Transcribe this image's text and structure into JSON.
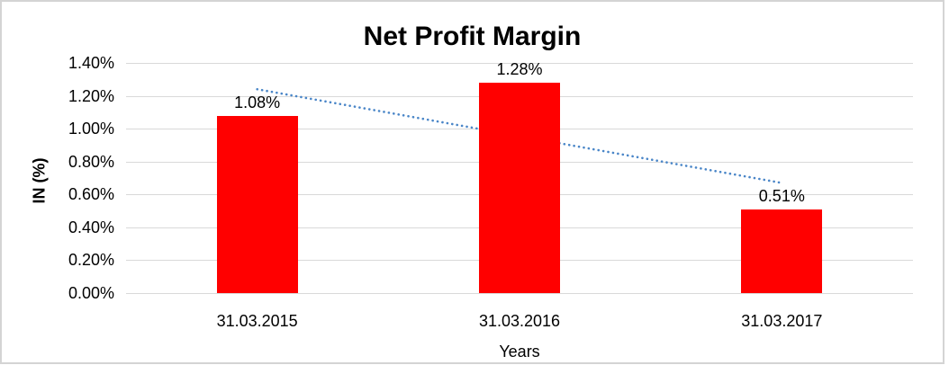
{
  "chart_data": {
    "type": "bar",
    "title": "Net Profit Margin",
    "xlabel": "Years",
    "ylabel": "IN (%)",
    "categories": [
      "31.03.2015",
      "31.03.2016",
      "31.03.2017"
    ],
    "values": [
      1.08,
      1.28,
      0.51
    ],
    "value_labels": [
      "1.08%",
      "1.28%",
      "0.51%"
    ],
    "unit": "%",
    "ylim": [
      0,
      1.4
    ],
    "ytick_step": 0.2,
    "ytick_labels": [
      "0.00%",
      "0.20%",
      "0.40%",
      "0.60%",
      "0.80%",
      "1.00%",
      "1.20%",
      "1.40%"
    ],
    "grid": true,
    "legend": false,
    "bar_color": "#ff0000",
    "gridline_color": "#d9d9d9",
    "frame_border_color": "#d4d4d4",
    "text_color": "#000000",
    "trendline": {
      "type": "linear",
      "style": "dotted",
      "color": "#4a86c8",
      "start_value": 1.24,
      "end_value": 0.67,
      "start_category_index": 0,
      "end_category_index": 2
    }
  }
}
